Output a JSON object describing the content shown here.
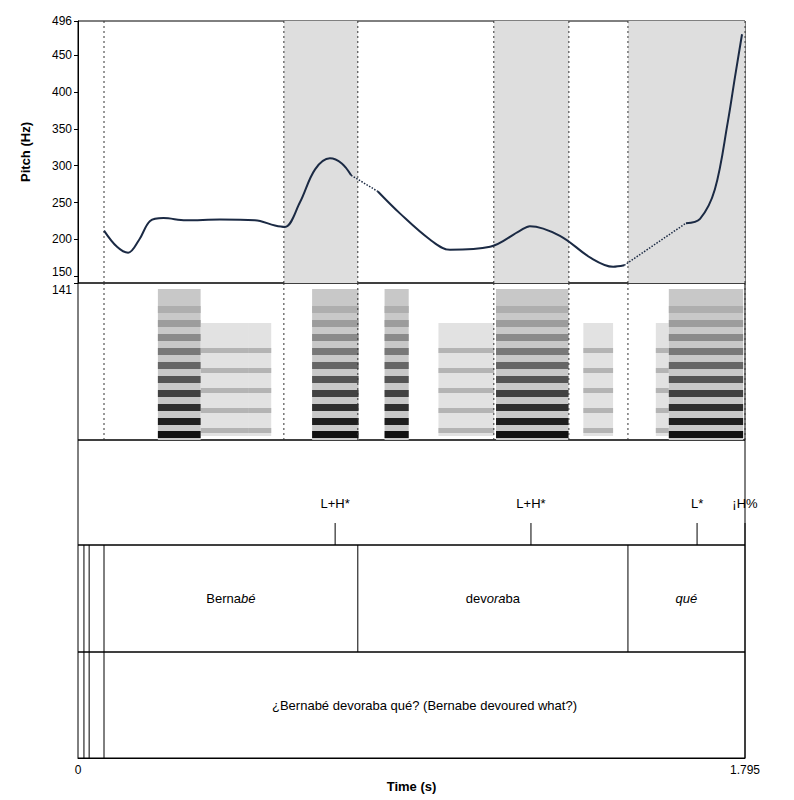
{
  "chart_data": {
    "type": "line",
    "y_label": "Pitch (Hz)",
    "x_label": "Time (s)",
    "xlim": [
      0,
      1.795
    ],
    "xticks": [
      0,
      1.795
    ],
    "ylim": [
      141,
      496
    ],
    "yticks": [
      141,
      150,
      200,
      250,
      300,
      350,
      400,
      450,
      496
    ],
    "series": [
      {
        "line_style": "solid",
        "color": "#1b2a44",
        "x": [
          0.07,
          0.105,
          0.135,
          0.165,
          0.194,
          0.23,
          0.29,
          0.382,
          0.476,
          0.53,
          0.557,
          0.597,
          0.638,
          0.678,
          0.71,
          0.735
        ],
        "values": [
          212,
          190,
          182,
          200,
          225,
          229,
          226,
          227,
          226,
          219,
          217,
          250,
          295,
          310,
          303,
          287
        ]
      },
      {
        "line_style": "dotted",
        "color": "#1b2a44",
        "x": [
          0.735,
          0.807
        ],
        "values": [
          287,
          265
        ]
      },
      {
        "line_style": "solid",
        "color": "#1b2a44",
        "x": [
          0.807,
          0.867,
          0.947,
          1.001,
          1.109,
          1.19,
          1.216,
          1.297,
          1.38,
          1.44,
          1.47
        ],
        "values": [
          265,
          235,
          200,
          186,
          190,
          212,
          218,
          205,
          175,
          163,
          165
        ]
      },
      {
        "line_style": "dotted",
        "color": "#1b2a44",
        "x": [
          1.47,
          1.636
        ],
        "values": [
          165,
          222
        ]
      },
      {
        "line_style": "solid",
        "color": "#1b2a44",
        "x": [
          1.636,
          1.674,
          1.714,
          1.749,
          1.768,
          1.787
        ],
        "values": [
          222,
          228,
          268,
          360,
          420,
          478
        ]
      }
    ],
    "shaded_intervals": [
      [
        0.554,
        0.753
      ],
      [
        1.119,
        1.321
      ],
      [
        1.48,
        1.795
      ]
    ],
    "boundaries": [
      0.07,
      0.554,
      0.753,
      1.119,
      1.321,
      1.48,
      1.795
    ],
    "spectrogram": {
      "voiced": [
        [
          0.215,
          0.33
        ],
        [
          0.63,
          0.755
        ],
        [
          0.825,
          0.89
        ],
        [
          1.125,
          1.32
        ],
        [
          1.59,
          1.79
        ]
      ],
      "noise": [
        [
          0.33,
          0.46
        ],
        [
          0.46,
          0.52
        ],
        [
          0.97,
          1.12
        ],
        [
          1.36,
          1.44
        ],
        [
          1.555,
          1.59
        ]
      ]
    },
    "tones": [
      {
        "time": 0.692,
        "label": "L+H*"
      },
      {
        "time": 1.219,
        "label": "L+H*"
      },
      {
        "time": 1.666,
        "label": "L*"
      },
      {
        "time": 1.795,
        "label": "¡H%"
      }
    ],
    "words": {
      "boundaries": [
        0.016,
        0.03,
        0.07,
        0.753,
        1.48,
        1.795
      ],
      "intervals": [
        {
          "start": 0.07,
          "end": 0.753,
          "parts": [
            "Berna",
            "bé"
          ],
          "italic": [
            false,
            true
          ]
        },
        {
          "start": 0.753,
          "end": 1.48,
          "parts": [
            "dev",
            "ora",
            "ba"
          ],
          "italic": [
            false,
            true,
            false
          ]
        },
        {
          "start": 1.48,
          "end": 1.795,
          "parts": [
            "qué"
          ],
          "italic": [
            true
          ]
        }
      ]
    },
    "sentence": {
      "boundaries": [
        0.016,
        0.03,
        0.07,
        1.795
      ],
      "intervals": [
        {
          "start": 0.07,
          "end": 1.795,
          "text": "¿Bernabé devoraba qué? (Bernabe devoured what?)"
        }
      ]
    }
  }
}
